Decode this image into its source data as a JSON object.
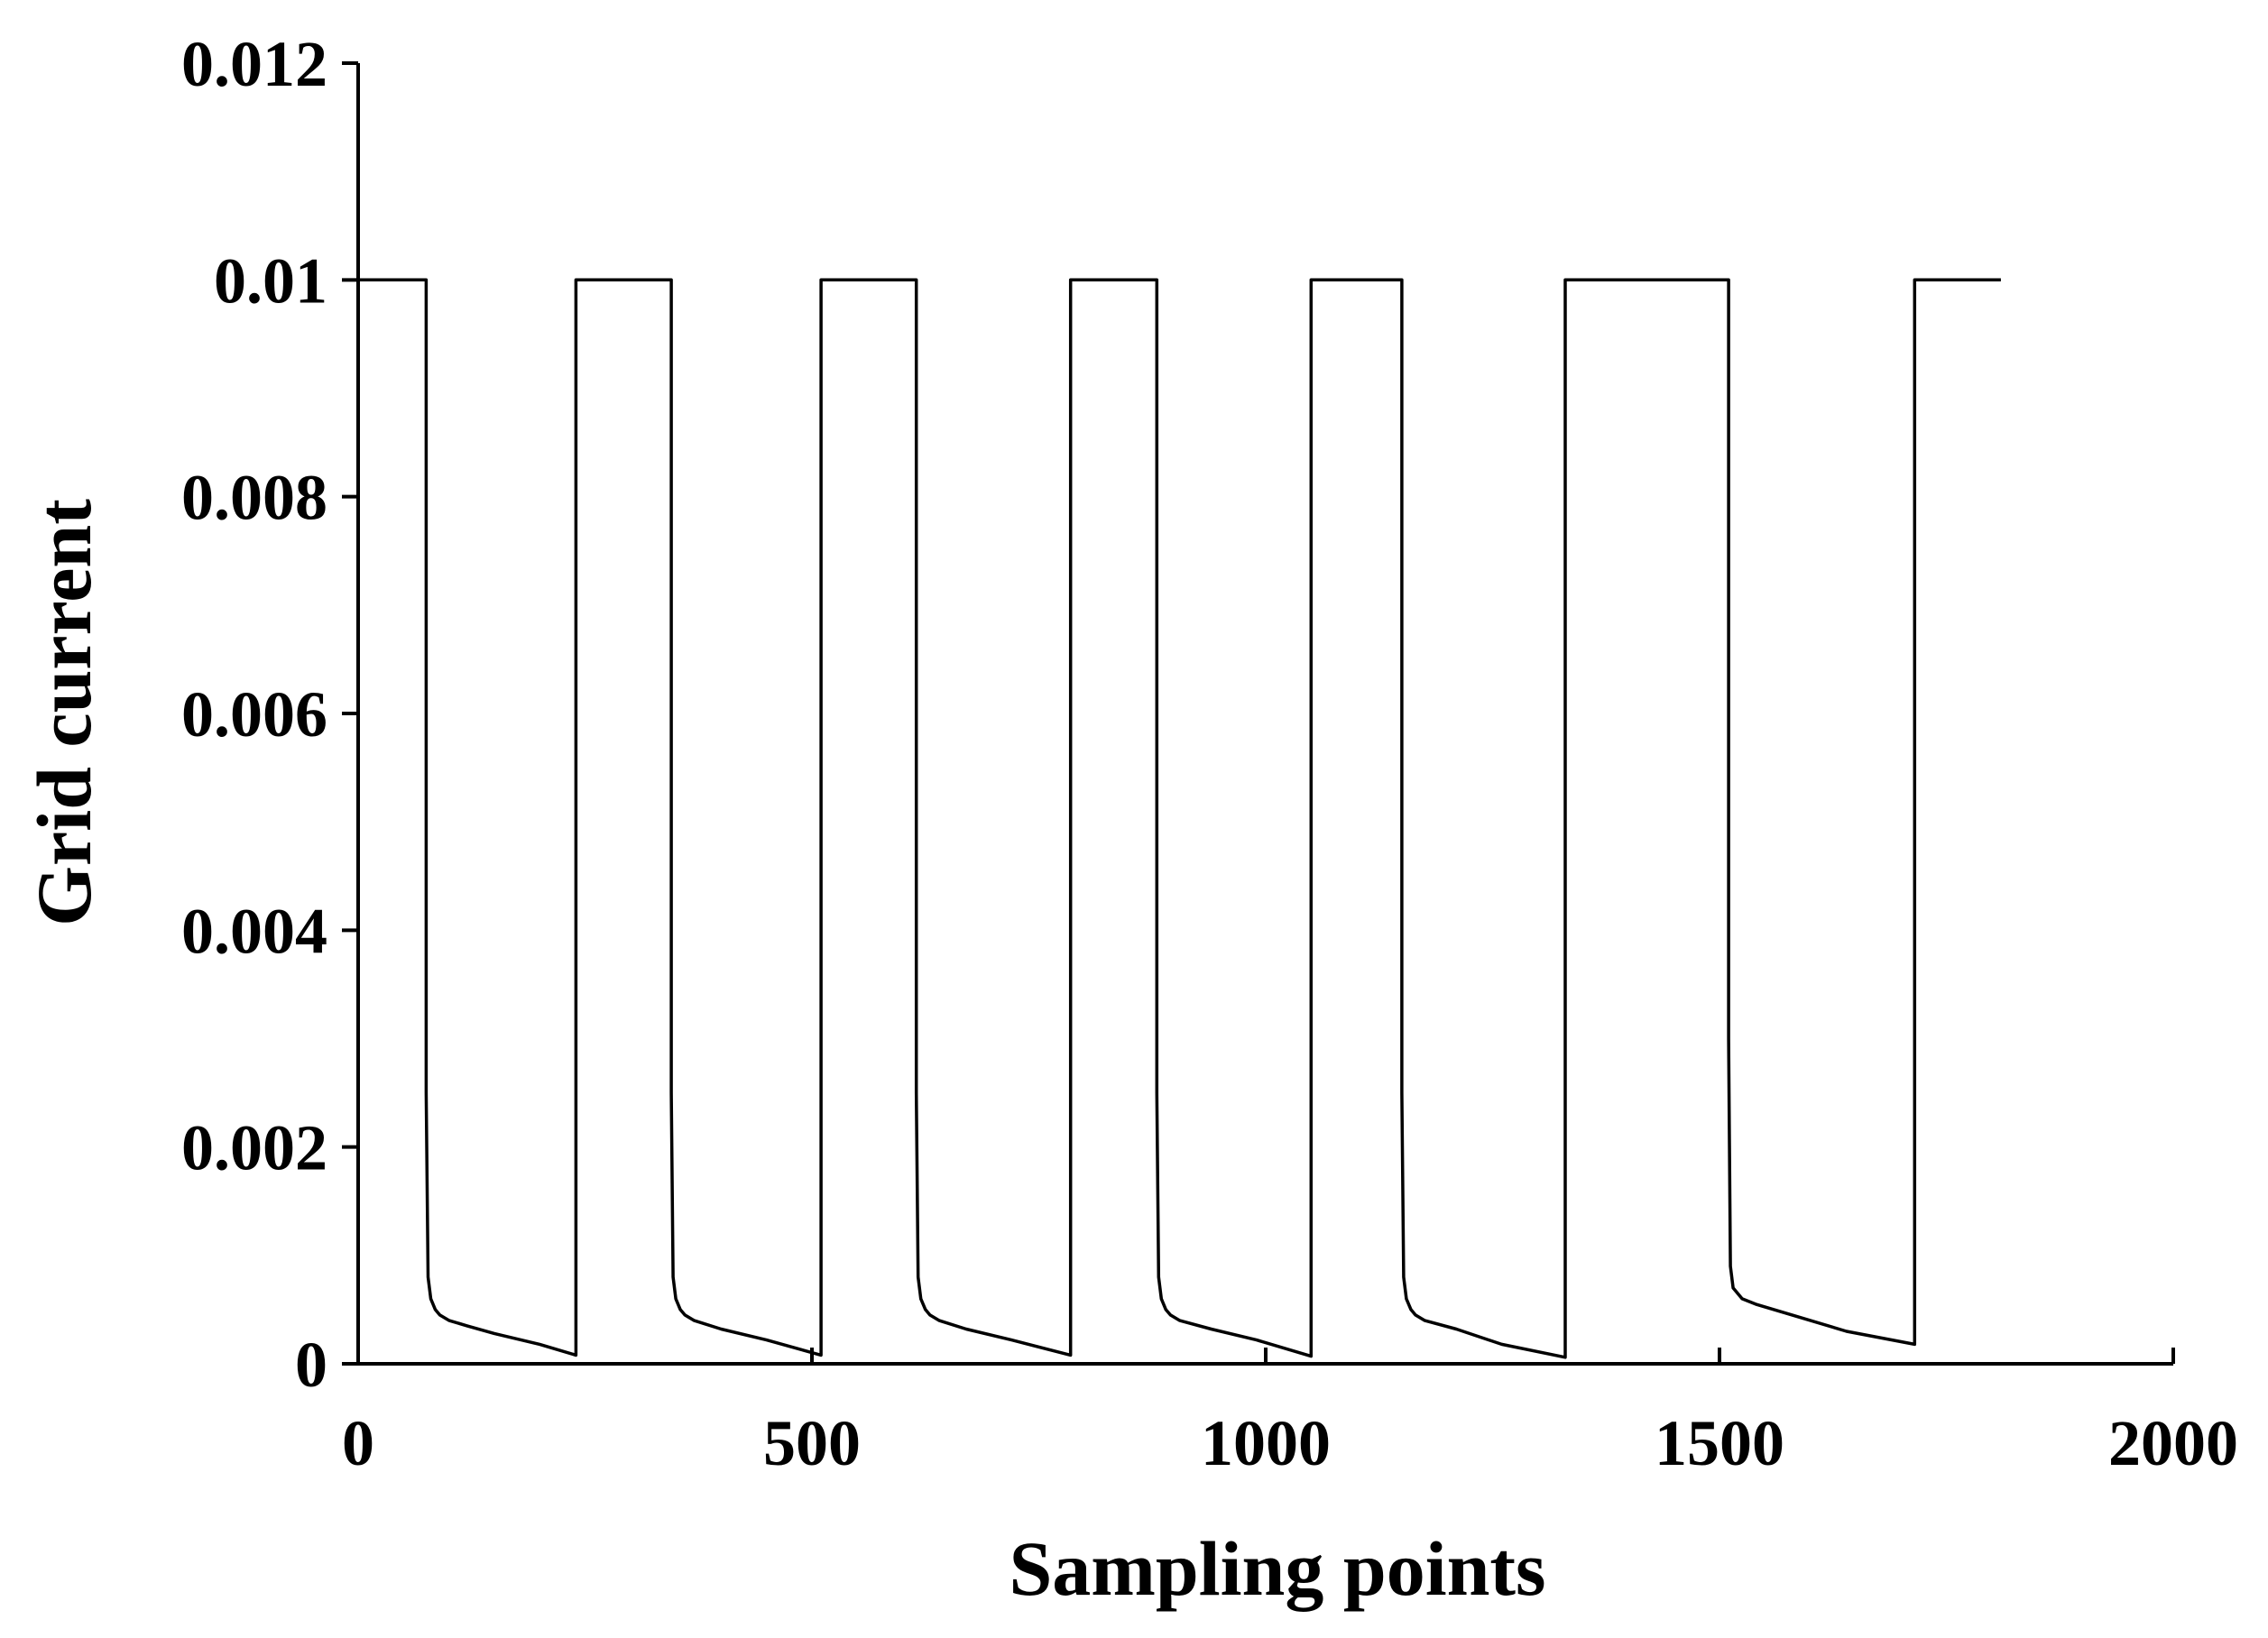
{
  "chart_data": {
    "type": "line",
    "title": "",
    "xlabel": "Sampling points",
    "ylabel": "Grid current",
    "xlim": [
      0,
      2000
    ],
    "ylim": [
      0,
      0.012
    ],
    "xticks": [
      0,
      500,
      1000,
      1500,
      2000
    ],
    "xtick_labels": [
      "0",
      "500",
      "1000",
      "1500",
      "2000"
    ],
    "yticks": [
      0,
      0.002,
      0.004,
      0.006,
      0.008,
      0.01,
      0.012
    ],
    "ytick_labels": [
      "0",
      "0.002",
      "0.004",
      "0.006",
      "0.008",
      "0.01",
      "0.012"
    ],
    "grid": false,
    "legend": "none",
    "line_color": "#000000",
    "series": [
      {
        "x": [
          0,
          75,
          75,
          77,
          80,
          85,
          90,
          100,
          120,
          150,
          200,
          240,
          240,
          345,
          345,
          347,
          350,
          355,
          360,
          370,
          400,
          450,
          510,
          510,
          615,
          615,
          617,
          620,
          625,
          630,
          640,
          670,
          720,
          785,
          785,
          880,
          880,
          882,
          885,
          890,
          895,
          905,
          940,
          990,
          1050,
          1050,
          1150,
          1150,
          1152,
          1155,
          1160,
          1165,
          1175,
          1210,
          1260,
          1330,
          1330,
          1510,
          1510,
          1512,
          1515,
          1520,
          1525,
          1540,
          1580,
          1640,
          1715,
          1715,
          1810
        ],
        "y": [
          0.01,
          0.01,
          0.0025,
          0.0008,
          0.0006,
          0.0005,
          0.00045,
          0.0004,
          0.00035,
          0.00028,
          0.00018,
          8e-05,
          0.01,
          0.01,
          0.0025,
          0.0008,
          0.0006,
          0.0005,
          0.00045,
          0.0004,
          0.00032,
          0.00022,
          8e-05,
          0.01,
          0.01,
          0.0025,
          0.0008,
          0.0006,
          0.0005,
          0.00045,
          0.0004,
          0.00032,
          0.00022,
          8e-05,
          0.01,
          0.01,
          0.0025,
          0.0008,
          0.0006,
          0.0005,
          0.00045,
          0.0004,
          0.00032,
          0.00022,
          7e-05,
          0.01,
          0.01,
          0.0025,
          0.0008,
          0.0006,
          0.0005,
          0.00045,
          0.0004,
          0.00032,
          0.00018,
          6e-05,
          0.01,
          0.01,
          0.003,
          0.0009,
          0.0007,
          0.00065,
          0.0006,
          0.00055,
          0.00045,
          0.0003,
          0.00018,
          0.01,
          0.01
        ]
      }
    ]
  }
}
